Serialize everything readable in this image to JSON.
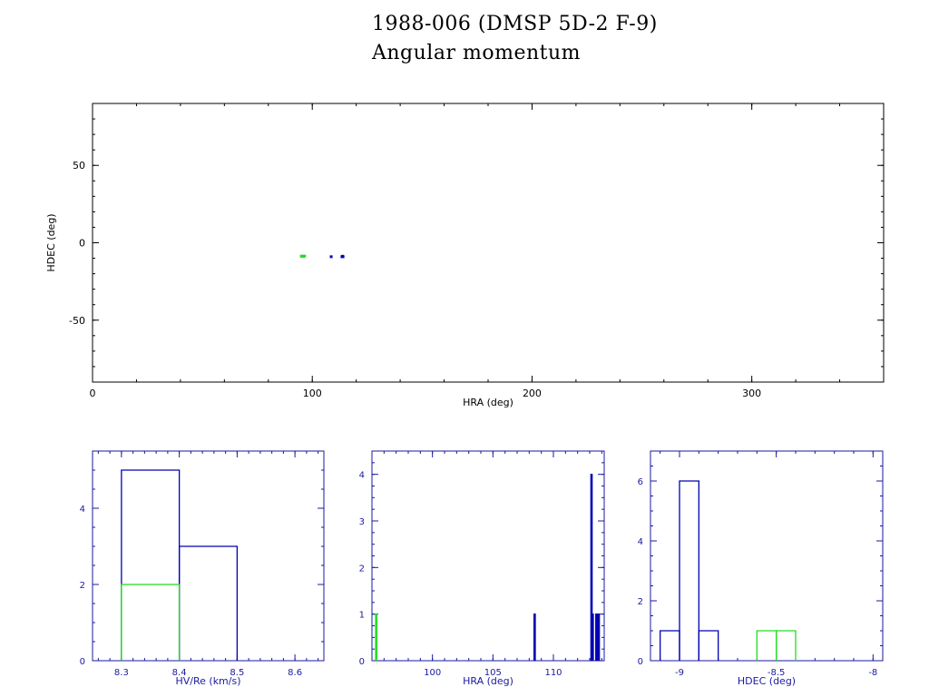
{
  "titles": {
    "line1": "1988-006 (DMSP 5D-2 F-9)",
    "line2": "Angular momentum"
  },
  "colors": {
    "frame": "#000000",
    "blue": "#0000b4",
    "green": "#22dd22",
    "hist_axes": "#1a1aa0",
    "background": "#ffffff"
  },
  "chart_data": [
    {
      "type": "scatter",
      "xlabel": "HRA (deg)",
      "ylabel": "HDEC (deg)",
      "xlim": [
        0,
        360
      ],
      "ylim": [
        -90,
        90
      ],
      "xticks": [
        0,
        100,
        200,
        300
      ],
      "yticks": [
        -50,
        0,
        50
      ],
      "grid": false,
      "series": [
        {
          "color": "green",
          "points": [
            [
              95.0,
              -8.7
            ],
            [
              95.5,
              -8.6
            ],
            [
              96.0,
              -8.8
            ],
            [
              96.5,
              -8.6
            ]
          ]
        },
        {
          "color": "blue",
          "points": [
            [
              108.6,
              -9.0
            ],
            [
              113.5,
              -9.0
            ],
            [
              113.8,
              -8.7
            ],
            [
              114.0,
              -9.0
            ]
          ]
        }
      ]
    },
    {
      "type": "bar",
      "subtype": "histogram",
      "xlabel": "HV/Re (km/s)",
      "ylabel": "",
      "xlim": [
        8.25,
        8.65
      ],
      "ylim": [
        0,
        5.5
      ],
      "xticks": [
        8.3,
        8.4,
        8.5,
        8.6
      ],
      "yticks": [
        0,
        2,
        4
      ],
      "series": [
        {
          "color": "blue",
          "bins": [
            [
              8.3,
              8.4,
              5
            ],
            [
              8.4,
              8.5,
              3
            ]
          ]
        },
        {
          "color": "green",
          "bins": [
            [
              8.3,
              8.4,
              2
            ]
          ]
        }
      ]
    },
    {
      "type": "bar",
      "subtype": "histogram",
      "xlabel": "HRA (deg)",
      "ylabel": "",
      "xlim": [
        95,
        114.2
      ],
      "ylim": [
        0,
        4.5
      ],
      "xticks": [
        100,
        105,
        110
      ],
      "yticks": [
        0,
        1,
        2,
        3,
        4
      ],
      "series": [
        {
          "color": "blue",
          "bins": [
            [
              108.4,
              108.5,
              1
            ],
            [
              113.1,
              113.2,
              4
            ],
            [
              113.2,
              113.3,
              1
            ],
            [
              113.5,
              113.6,
              1
            ],
            [
              113.6,
              113.7,
              1
            ],
            [
              113.7,
              113.8,
              1
            ]
          ]
        },
        {
          "color": "green",
          "bins": [
            [
              95.3,
              95.4,
              1
            ]
          ]
        }
      ]
    },
    {
      "type": "bar",
      "subtype": "histogram",
      "xlabel": "HDEC (deg)",
      "ylabel": "",
      "xlim": [
        -9.15,
        -7.95
      ],
      "ylim": [
        0,
        7
      ],
      "xticks": [
        -9,
        -8.5,
        -8
      ],
      "yticks": [
        0,
        2,
        4,
        6
      ],
      "series": [
        {
          "color": "blue",
          "bins": [
            [
              -9.1,
              -9.0,
              1
            ],
            [
              -9.0,
              -8.9,
              6
            ],
            [
              -8.9,
              -8.8,
              1
            ]
          ]
        },
        {
          "color": "green",
          "bins": [
            [
              -8.6,
              -8.5,
              1
            ],
            [
              -8.5,
              -8.4,
              1
            ]
          ]
        }
      ]
    }
  ]
}
